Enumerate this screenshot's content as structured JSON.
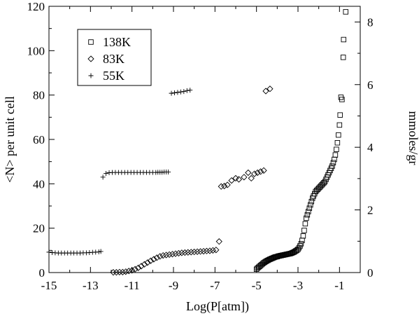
{
  "chart_data": {
    "type": "scatter",
    "title": "",
    "xlabel": "Log(P[atm])",
    "ylabel": "<N> per unit cell",
    "y2label": "mmoles/gr",
    "xlim": [
      -15,
      0
    ],
    "ylim": [
      0,
      120
    ],
    "y2lim": [
      0,
      8.5
    ],
    "xticks": [
      -15,
      -13,
      -11,
      -9,
      -7,
      -5,
      -3,
      -1
    ],
    "yticks": [
      0,
      20,
      40,
      60,
      80,
      100,
      120
    ],
    "y2ticks": [
      0,
      2,
      4,
      6,
      8
    ],
    "grid": false,
    "legend_position": "top-left",
    "series": [
      {
        "name": "138K",
        "marker": "square",
        "points": [
          [
            -5.0,
            1.5
          ],
          [
            -4.95,
            2.0
          ],
          [
            -4.9,
            2.4
          ],
          [
            -4.85,
            2.8
          ],
          [
            -4.8,
            3.2
          ],
          [
            -4.75,
            3.6
          ],
          [
            -4.7,
            4.0
          ],
          [
            -4.65,
            4.4
          ],
          [
            -4.6,
            4.7
          ],
          [
            -4.55,
            5.0
          ],
          [
            -4.5,
            5.3
          ],
          [
            -4.45,
            5.5
          ],
          [
            -4.4,
            5.8
          ],
          [
            -4.35,
            6.0
          ],
          [
            -4.3,
            6.2
          ],
          [
            -4.25,
            6.4
          ],
          [
            -4.2,
            6.6
          ],
          [
            -4.15,
            6.8
          ],
          [
            -4.1,
            7.0
          ],
          [
            -4.05,
            7.1
          ],
          [
            -4.0,
            7.2
          ],
          [
            -3.95,
            7.4
          ],
          [
            -3.9,
            7.5
          ],
          [
            -3.85,
            7.6
          ],
          [
            -3.8,
            7.7
          ],
          [
            -3.75,
            7.8
          ],
          [
            -3.7,
            7.9
          ],
          [
            -3.65,
            8.0
          ],
          [
            -3.6,
            8.1
          ],
          [
            -3.55,
            8.2
          ],
          [
            -3.5,
            8.3
          ],
          [
            -3.45,
            8.4
          ],
          [
            -3.4,
            8.5
          ],
          [
            -3.35,
            8.6
          ],
          [
            -3.3,
            8.8
          ],
          [
            -3.25,
            9.0
          ],
          [
            -3.2,
            9.2
          ],
          [
            -3.15,
            9.5
          ],
          [
            -3.1,
            9.8
          ],
          [
            -3.05,
            10.1
          ],
          [
            -3.0,
            10.5
          ],
          [
            -2.95,
            11.2
          ],
          [
            -2.9,
            12.0
          ],
          [
            -2.85,
            13.0
          ],
          [
            -2.8,
            14.5
          ],
          [
            -2.75,
            16.5
          ],
          [
            -2.7,
            19.0
          ],
          [
            -2.65,
            22.0
          ],
          [
            -2.6,
            24.5
          ],
          [
            -2.55,
            26.0
          ],
          [
            -2.5,
            27.5
          ],
          [
            -2.45,
            29.0
          ],
          [
            -2.4,
            30.5
          ],
          [
            -2.35,
            32.0
          ],
          [
            -2.3,
            33.5
          ],
          [
            -2.25,
            34.5
          ],
          [
            -2.2,
            35.5
          ],
          [
            -2.15,
            36.5
          ],
          [
            -2.1,
            37.0
          ],
          [
            -2.05,
            37.5
          ],
          [
            -2.0,
            38.0
          ],
          [
            -1.95,
            38.5
          ],
          [
            -1.9,
            39.0
          ],
          [
            -1.85,
            39.5
          ],
          [
            -1.8,
            40.0
          ],
          [
            -1.75,
            40.5
          ],
          [
            -1.7,
            41.0
          ],
          [
            -1.65,
            42.0
          ],
          [
            -1.6,
            43.0
          ],
          [
            -1.55,
            44.0
          ],
          [
            -1.5,
            45.0
          ],
          [
            -1.45,
            46.0
          ],
          [
            -1.4,
            47.0
          ],
          [
            -1.35,
            48.0
          ],
          [
            -1.3,
            49.5
          ],
          [
            -1.25,
            51.0
          ],
          [
            -1.2,
            53.0
          ],
          [
            -1.15,
            55.5
          ],
          [
            -1.1,
            58.5
          ],
          [
            -1.05,
            62.0
          ],
          [
            -1.0,
            66.5
          ],
          [
            -0.97,
            71.0
          ],
          [
            -0.93,
            79.0
          ],
          [
            -0.88,
            78.0
          ],
          [
            -0.82,
            97.0
          ],
          [
            -0.8,
            105.0
          ],
          [
            -0.7,
            117.5
          ]
        ]
      },
      {
        "name": "83K",
        "marker": "diamond",
        "points": [
          [
            -11.9,
            0.1
          ],
          [
            -11.75,
            0.1
          ],
          [
            -11.6,
            0.2
          ],
          [
            -11.45,
            0.2
          ],
          [
            -11.3,
            0.4
          ],
          [
            -11.15,
            0.7
          ],
          [
            -11.0,
            1.0
          ],
          [
            -10.85,
            1.5
          ],
          [
            -10.7,
            2.1
          ],
          [
            -10.55,
            2.9
          ],
          [
            -10.4,
            3.7
          ],
          [
            -10.25,
            4.5
          ],
          [
            -10.1,
            5.3
          ],
          [
            -9.95,
            6.0
          ],
          [
            -9.8,
            6.7
          ],
          [
            -9.65,
            7.3
          ],
          [
            -9.5,
            7.7
          ],
          [
            -9.35,
            7.9
          ],
          [
            -9.2,
            8.1
          ],
          [
            -9.05,
            8.3
          ],
          [
            -8.9,
            8.5
          ],
          [
            -8.75,
            8.7
          ],
          [
            -8.6,
            8.9
          ],
          [
            -8.45,
            9.0
          ],
          [
            -8.3,
            9.1
          ],
          [
            -8.15,
            9.2
          ],
          [
            -8.0,
            9.3
          ],
          [
            -7.85,
            9.4
          ],
          [
            -7.7,
            9.5
          ],
          [
            -7.55,
            9.6
          ],
          [
            -7.4,
            9.7
          ],
          [
            -7.25,
            9.8
          ],
          [
            -7.1,
            10.0
          ],
          [
            -6.95,
            10.2
          ],
          [
            -6.8,
            14.0
          ],
          [
            -6.7,
            38.8
          ],
          [
            -6.55,
            39.0
          ],
          [
            -6.4,
            39.5
          ],
          [
            -6.2,
            41.5
          ],
          [
            -6.0,
            42.5
          ],
          [
            -5.85,
            42.0
          ],
          [
            -5.6,
            43.0
          ],
          [
            -5.4,
            45.0
          ],
          [
            -5.25,
            42.5
          ],
          [
            -5.1,
            44.5
          ],
          [
            -4.95,
            45.0
          ],
          [
            -4.8,
            45.5
          ],
          [
            -4.65,
            46.0
          ],
          [
            -4.55,
            81.8
          ],
          [
            -4.35,
            82.8
          ]
        ]
      },
      {
        "name": "55K",
        "marker": "plus",
        "points": [
          [
            -15.0,
            9.2
          ],
          [
            -14.85,
            9.0
          ],
          [
            -14.7,
            8.9
          ],
          [
            -14.55,
            8.8
          ],
          [
            -14.4,
            8.8
          ],
          [
            -14.25,
            8.8
          ],
          [
            -14.1,
            8.8
          ],
          [
            -13.95,
            8.8
          ],
          [
            -13.8,
            8.8
          ],
          [
            -13.65,
            8.8
          ],
          [
            -13.5,
            8.8
          ],
          [
            -13.35,
            8.9
          ],
          [
            -13.2,
            8.9
          ],
          [
            -13.05,
            9.0
          ],
          [
            -12.9,
            9.1
          ],
          [
            -12.75,
            9.2
          ],
          [
            -12.6,
            9.3
          ],
          [
            -12.5,
            9.5
          ],
          [
            -12.4,
            43.0
          ],
          [
            -12.25,
            44.7
          ],
          [
            -12.1,
            45.0
          ],
          [
            -11.95,
            45.1
          ],
          [
            -11.8,
            45.1
          ],
          [
            -11.65,
            45.1
          ],
          [
            -11.5,
            45.1
          ],
          [
            -11.35,
            45.1
          ],
          [
            -11.2,
            45.1
          ],
          [
            -11.05,
            45.1
          ],
          [
            -10.9,
            45.1
          ],
          [
            -10.75,
            45.1
          ],
          [
            -10.6,
            45.1
          ],
          [
            -10.45,
            45.1
          ],
          [
            -10.3,
            45.1
          ],
          [
            -10.15,
            45.1
          ],
          [
            -10.0,
            45.1
          ],
          [
            -9.85,
            45.1
          ],
          [
            -9.75,
            45.2
          ],
          [
            -9.65,
            45.2
          ],
          [
            -9.55,
            45.2
          ],
          [
            -9.45,
            45.3
          ],
          [
            -9.35,
            45.3
          ],
          [
            -9.25,
            45.3
          ],
          [
            -9.1,
            80.8
          ],
          [
            -8.95,
            81.0
          ],
          [
            -8.8,
            81.2
          ],
          [
            -8.65,
            81.4
          ],
          [
            -8.5,
            81.6
          ],
          [
            -8.35,
            82.0
          ],
          [
            -8.2,
            82.2
          ]
        ]
      }
    ]
  }
}
